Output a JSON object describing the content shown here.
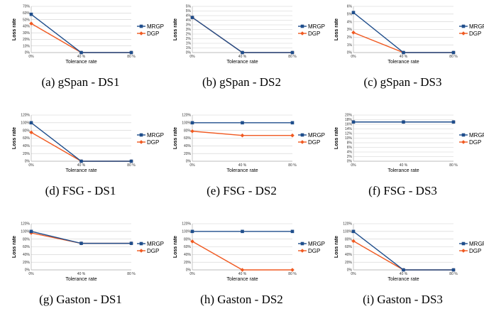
{
  "colors": {
    "MRGP": "#1f4e8c",
    "DGP": "#f05a22",
    "grid": "#d0d0d0",
    "axis": "#b0b0b0"
  },
  "chart_data": [
    {
      "caption": "(a) gSpan - DS1",
      "type": "line",
      "xlabel": "Tolerance rate",
      "ylabel": "Loss rate",
      "x": [
        "0%",
        "40 %",
        "80 %"
      ],
      "yticks": [
        "0%",
        "10%",
        "20%",
        "30%",
        "40%",
        "50%",
        "60%",
        "70%"
      ],
      "ylim": [
        0,
        70
      ],
      "series": [
        {
          "name": "MRGP",
          "values": [
            58,
            0,
            0
          ]
        },
        {
          "name": "DGP",
          "values": [
            44,
            0,
            0
          ]
        }
      ]
    },
    {
      "caption": "(b) gSpan - DS2",
      "type": "line",
      "xlabel": "Tolerance rate",
      "ylabel": "Loss rate",
      "x": [
        "0%",
        "40 %",
        "80 %"
      ],
      "yticks": [
        "0%",
        "1%",
        "1%",
        "2%",
        "2%",
        "3%",
        "3%",
        "4%",
        "4%",
        "5%",
        "5%"
      ],
      "ylim": [
        0,
        5
      ],
      "series": [
        {
          "name": "MRGP",
          "values": [
            3.8,
            0,
            0
          ]
        },
        {
          "name": "DGP",
          "values": [
            3.8,
            0,
            0
          ]
        }
      ]
    },
    {
      "caption": "(c) gSpan - DS3",
      "type": "line",
      "xlabel": "Tolerance rate",
      "ylabel": "Loss rate",
      "x": [
        "0%",
        "40 %",
        "80 %"
      ],
      "yticks": [
        "0%",
        "1%",
        "2%",
        "3%",
        "4%",
        "5%",
        "6%"
      ],
      "ylim": [
        0,
        6
      ],
      "series": [
        {
          "name": "MRGP",
          "values": [
            5.2,
            0,
            0
          ]
        },
        {
          "name": "DGP",
          "values": [
            2.6,
            0,
            0
          ]
        }
      ]
    },
    {
      "caption": "(d) FSG - DS1",
      "type": "line",
      "xlabel": "Tolerance rate",
      "ylabel": "Loss rate",
      "x": [
        "0%",
        "40 %",
        "80 %"
      ],
      "yticks": [
        "0%",
        "20%",
        "40%",
        "60%",
        "80%",
        "100%",
        "120%"
      ],
      "ylim": [
        0,
        120
      ],
      "series": [
        {
          "name": "MRGP",
          "values": [
            100,
            0,
            0
          ]
        },
        {
          "name": "DGP",
          "values": [
            75,
            0,
            0
          ]
        }
      ]
    },
    {
      "caption": "(e) FSG - DS2",
      "type": "line",
      "xlabel": "Tolerance rate",
      "ylabel": "Loss rate",
      "x": [
        "0%",
        "40 %",
        "80 %"
      ],
      "yticks": [
        "0%",
        "20%",
        "40%",
        "60%",
        "80%",
        "100%",
        "120%"
      ],
      "ylim": [
        0,
        120
      ],
      "series": [
        {
          "name": "MRGP",
          "values": [
            100,
            100,
            100
          ]
        },
        {
          "name": "DGP",
          "values": [
            78,
            67,
            67
          ]
        }
      ]
    },
    {
      "caption": "(f) FSG - DS3",
      "type": "line",
      "xlabel": "Tolerance rate",
      "ylabel": "Loss rate",
      "x": [
        "0%",
        "40 %",
        "80 %"
      ],
      "yticks": [
        "0%",
        "2%",
        "4%",
        "6%",
        "8%",
        "10%",
        "12%",
        "14%",
        "16%",
        "18%",
        "20%"
      ],
      "ylim": [
        0,
        20
      ],
      "series": [
        {
          "name": "MRGP",
          "values": [
            17,
            17,
            17
          ]
        },
        {
          "name": "DGP",
          "values": [
            17,
            17,
            17
          ]
        }
      ]
    },
    {
      "caption": "(g) Gaston - DS1",
      "type": "line",
      "xlabel": "Tolerance rate",
      "ylabel": "Loss rate",
      "x": [
        "0%",
        "40 %",
        "80 %"
      ],
      "yticks": [
        "0%",
        "20%",
        "40%",
        "60%",
        "80%",
        "100%",
        "120%"
      ],
      "ylim": [
        0,
        120
      ],
      "series": [
        {
          "name": "MRGP",
          "values": [
            100,
            69,
            69
          ]
        },
        {
          "name": "DGP",
          "values": [
            96,
            69,
            69
          ]
        }
      ]
    },
    {
      "caption": "(h) Gaston - DS2",
      "type": "line",
      "xlabel": "Tolerance rate",
      "ylabel": "Loss rate",
      "x": [
        "0%",
        "40 %",
        "80 %"
      ],
      "yticks": [
        "0%",
        "20%",
        "40%",
        "60%",
        "80%",
        "100%",
        "120%"
      ],
      "ylim": [
        0,
        120
      ],
      "series": [
        {
          "name": "MRGP",
          "values": [
            100,
            100,
            100
          ]
        },
        {
          "name": "DGP",
          "values": [
            74,
            0,
            0
          ]
        }
      ]
    },
    {
      "caption": "(i) Gaston - DS3",
      "type": "line",
      "xlabel": "Tolerance rate",
      "ylabel": "Loss rate",
      "x": [
        "0%",
        "40 %",
        "80 %"
      ],
      "yticks": [
        "0%",
        "20%",
        "40%",
        "60%",
        "80%",
        "100%",
        "120%"
      ],
      "ylim": [
        0,
        120
      ],
      "series": [
        {
          "name": "MRGP",
          "values": [
            100,
            0,
            0
          ]
        },
        {
          "name": "DGP",
          "values": [
            75,
            0,
            0
          ]
        }
      ]
    }
  ]
}
